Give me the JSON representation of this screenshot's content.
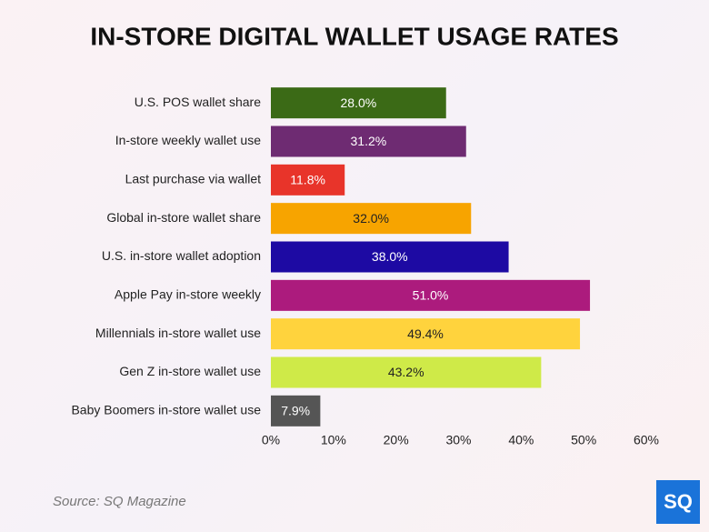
{
  "chart_data": {
    "type": "hbar",
    "title": "IN-STORE DIGITAL WALLET USAGE RATES",
    "categories": [
      "U.S. POS wallet share",
      "In-store weekly wallet use",
      "Last purchase via wallet",
      "Global in-store wallet share",
      "U.S. in-store wallet adoption",
      "Apple Pay in-store weekly",
      "Millennials in-store wallet use",
      "Gen Z in-store wallet use",
      "Baby Boomers in-store wallet use"
    ],
    "values": [
      28.0,
      31.2,
      11.8,
      32.0,
      38.0,
      51.0,
      49.4,
      43.2,
      7.9
    ],
    "value_labels": [
      "28.0%",
      "31.2%",
      "11.8%",
      "32.0%",
      "38.0%",
      "51.0%",
      "49.4%",
      "43.2%",
      "7.9%"
    ],
    "colors": [
      "#3b6a16",
      "#6e2b72",
      "#e8342a",
      "#f7a400",
      "#1d0aa3",
      "#ac1b7d",
      "#ffd33d",
      "#cfea48",
      "#555555"
    ],
    "xlim": [
      0,
      60
    ],
    "xticks": [
      {
        "value": 0,
        "label": "0%"
      },
      {
        "value": 10,
        "label": "10%"
      },
      {
        "value": 20,
        "label": "20%"
      },
      {
        "value": 30,
        "label": "30%"
      },
      {
        "value": 40,
        "label": "40%"
      },
      {
        "value": 50,
        "label": "50%"
      },
      {
        "value": 60,
        "label": "60%"
      }
    ],
    "grid": false
  },
  "footer": {
    "source": "Source: SQ Magazine",
    "logo": "SQ"
  }
}
